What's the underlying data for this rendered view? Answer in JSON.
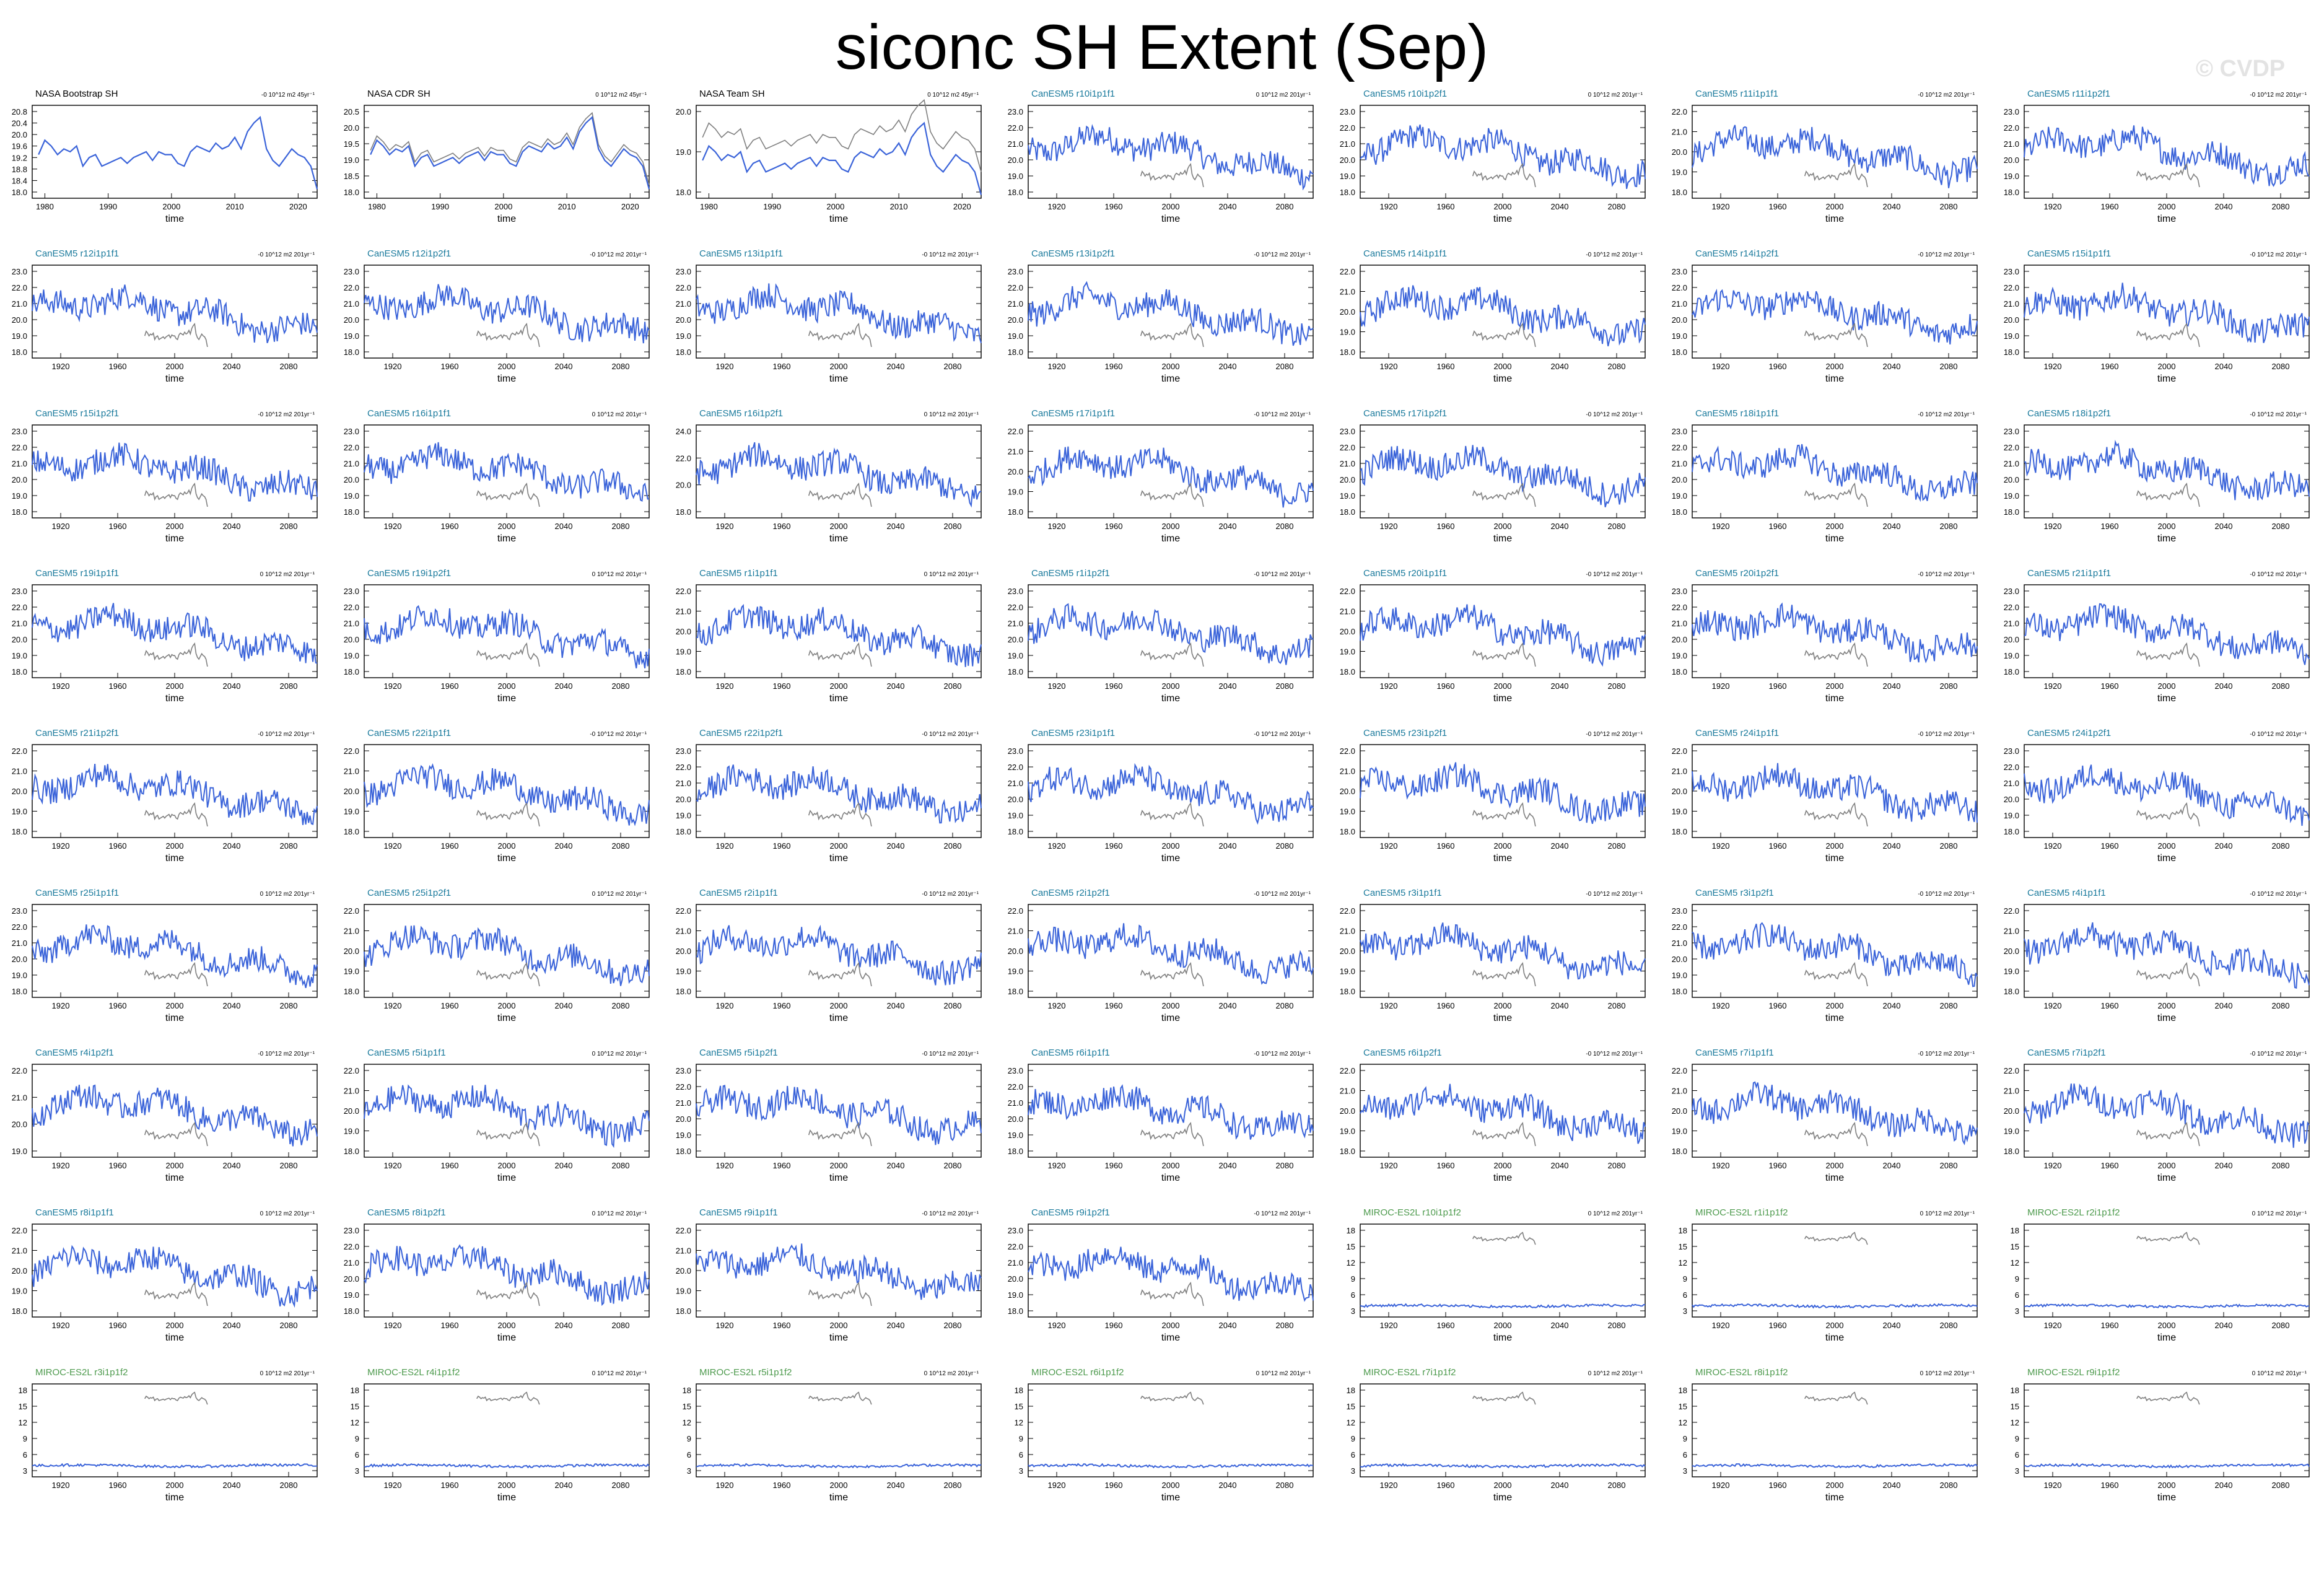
{
  "title": "siconc SH Extent (Sep)",
  "watermark": "© CVDP",
  "colors": {
    "model": "#3a63d9",
    "obs": "#7f7f7f",
    "label_obs": "#000000",
    "label_canesm": "#1a7a9c",
    "label_miroc": "#4d9a4d"
  },
  "panel_common": {
    "xlabel": "time",
    "obs_xticks": [
      "1980",
      "1990",
      "2000",
      "2010",
      "2020"
    ],
    "model_xticks": [
      "1920",
      "1960",
      "2000",
      "2040",
      "2080"
    ]
  },
  "panels": [
    {
      "name": "NASA Bootstrap SH",
      "stat": "-0 10^12 m2 45yr⁻¹",
      "kind": "obs",
      "yticks": [
        "18.0",
        "18.4",
        "18.8",
        "19.2",
        "19.6",
        "20.0",
        "20.4",
        "20.8"
      ]
    },
    {
      "name": "NASA CDR SH",
      "stat": "0 10^12 m2 45yr⁻¹",
      "kind": "obs",
      "yticks": [
        "18.0",
        "18.5",
        "19.0",
        "19.5",
        "20.0",
        "20.5"
      ]
    },
    {
      "name": "NASA Team SH",
      "stat": "0 10^12 m2 45yr⁻¹",
      "kind": "obs",
      "yticks": [
        "18.0",
        "19.0",
        "20.0"
      ]
    },
    {
      "name": "CanESM5 r10i1p1f1",
      "stat": "0 10^12 m2 201yr⁻¹",
      "kind": "canesm",
      "yticks": [
        "18.0",
        "19.0",
        "20.0",
        "21.0",
        "22.0",
        "23.0"
      ]
    },
    {
      "name": "CanESM5 r10i1p2f1",
      "stat": "0 10^12 m2 201yr⁻¹",
      "kind": "canesm",
      "yticks": [
        "18.0",
        "19.0",
        "20.0",
        "21.0",
        "22.0",
        "23.0"
      ]
    },
    {
      "name": "CanESM5 r11i1p1f1",
      "stat": "-0 10^12 m2 201yr⁻¹",
      "kind": "canesm",
      "yticks": [
        "18.0",
        "19.0",
        "20.0",
        "21.0",
        "22.0"
      ]
    },
    {
      "name": "CanESM5 r11i1p2f1",
      "stat": "-0 10^12 m2 201yr⁻¹",
      "kind": "canesm",
      "yticks": [
        "18.0",
        "19.0",
        "20.0",
        "21.0",
        "22.0",
        "23.0"
      ]
    },
    {
      "name": "CanESM5 r12i1p1f1",
      "stat": "-0 10^12 m2 201yr⁻¹",
      "kind": "canesm",
      "yticks": [
        "18.0",
        "19.0",
        "20.0",
        "21.0",
        "22.0",
        "23.0"
      ]
    },
    {
      "name": "CanESM5 r12i1p2f1",
      "stat": "-0 10^12 m2 201yr⁻¹",
      "kind": "canesm",
      "yticks": [
        "18.0",
        "19.0",
        "20.0",
        "21.0",
        "22.0",
        "23.0"
      ]
    },
    {
      "name": "CanESM5 r13i1p1f1",
      "stat": "-0 10^12 m2 201yr⁻¹",
      "kind": "canesm",
      "yticks": [
        "18.0",
        "19.0",
        "20.0",
        "21.0",
        "22.0",
        "23.0"
      ]
    },
    {
      "name": "CanESM5 r13i1p2f1",
      "stat": "-0 10^12 m2 201yr⁻¹",
      "kind": "canesm",
      "yticks": [
        "18.0",
        "19.0",
        "20.0",
        "21.0",
        "22.0",
        "23.0"
      ]
    },
    {
      "name": "CanESM5 r14i1p1f1",
      "stat": "-0 10^12 m2 201yr⁻¹",
      "kind": "canesm",
      "yticks": [
        "18.0",
        "19.0",
        "20.0",
        "21.0",
        "22.0"
      ]
    },
    {
      "name": "CanESM5 r14i1p2f1",
      "stat": "-0 10^12 m2 201yr⁻¹",
      "kind": "canesm",
      "yticks": [
        "18.0",
        "19.0",
        "20.0",
        "21.0",
        "22.0",
        "23.0"
      ]
    },
    {
      "name": "CanESM5 r15i1p1f1",
      "stat": "-0 10^12 m2 201yr⁻¹",
      "kind": "canesm",
      "yticks": [
        "18.0",
        "19.0",
        "20.0",
        "21.0",
        "22.0",
        "23.0"
      ]
    },
    {
      "name": "CanESM5 r15i1p2f1",
      "stat": "-0 10^12 m2 201yr⁻¹",
      "kind": "canesm",
      "yticks": [
        "18.0",
        "19.0",
        "20.0",
        "21.0",
        "22.0",
        "23.0"
      ]
    },
    {
      "name": "CanESM5 r16i1p1f1",
      "stat": "0 10^12 m2 201yr⁻¹",
      "kind": "canesm",
      "yticks": [
        "18.0",
        "19.0",
        "20.0",
        "21.0",
        "22.0",
        "23.0"
      ]
    },
    {
      "name": "CanESM5 r16i1p2f1",
      "stat": "0 10^12 m2 201yr⁻¹",
      "kind": "canesm",
      "yticks": [
        "18.0",
        "20.0",
        "22.0",
        "24.0"
      ]
    },
    {
      "name": "CanESM5 r17i1p1f1",
      "stat": "-0 10^12 m2 201yr⁻¹",
      "kind": "canesm",
      "yticks": [
        "18.0",
        "19.0",
        "20.0",
        "21.0",
        "22.0"
      ]
    },
    {
      "name": "CanESM5 r17i1p2f1",
      "stat": "-0 10^12 m2 201yr⁻¹",
      "kind": "canesm",
      "yticks": [
        "18.0",
        "19.0",
        "20.0",
        "21.0",
        "22.0",
        "23.0"
      ]
    },
    {
      "name": "CanESM5 r18i1p1f1",
      "stat": "-0 10^12 m2 201yr⁻¹",
      "kind": "canesm",
      "yticks": [
        "18.0",
        "19.0",
        "20.0",
        "21.0",
        "22.0",
        "23.0"
      ]
    },
    {
      "name": "CanESM5 r18i1p2f1",
      "stat": "-0 10^12 m2 201yr⁻¹",
      "kind": "canesm",
      "yticks": [
        "18.0",
        "19.0",
        "20.0",
        "21.0",
        "22.0",
        "23.0"
      ]
    },
    {
      "name": "CanESM5 r19i1p1f1",
      "stat": "0 10^12 m2 201yr⁻¹",
      "kind": "canesm",
      "yticks": [
        "18.0",
        "19.0",
        "20.0",
        "21.0",
        "22.0",
        "23.0"
      ]
    },
    {
      "name": "CanESM5 r19i1p2f1",
      "stat": "0 10^12 m2 201yr⁻¹",
      "kind": "canesm",
      "yticks": [
        "18.0",
        "19.0",
        "20.0",
        "21.0",
        "22.0",
        "23.0"
      ]
    },
    {
      "name": "CanESM5 r1i1p1f1",
      "stat": "0 10^12 m2 201yr⁻¹",
      "kind": "canesm",
      "yticks": [
        "18.0",
        "19.0",
        "20.0",
        "21.0",
        "22.0"
      ]
    },
    {
      "name": "CanESM5 r1i1p2f1",
      "stat": "-0 10^12 m2 201yr⁻¹",
      "kind": "canesm",
      "yticks": [
        "18.0",
        "19.0",
        "20.0",
        "21.0",
        "22.0",
        "23.0"
      ]
    },
    {
      "name": "CanESM5 r20i1p1f1",
      "stat": "-0 10^12 m2 201yr⁻¹",
      "kind": "canesm",
      "yticks": [
        "18.0",
        "19.0",
        "20.0",
        "21.0",
        "22.0"
      ]
    },
    {
      "name": "CanESM5 r20i1p2f1",
      "stat": "-0 10^12 m2 201yr⁻¹",
      "kind": "canesm",
      "yticks": [
        "18.0",
        "19.0",
        "20.0",
        "21.0",
        "22.0",
        "23.0"
      ]
    },
    {
      "name": "CanESM5 r21i1p1f1",
      "stat": "-0 10^12 m2 201yr⁻¹",
      "kind": "canesm",
      "yticks": [
        "18.0",
        "19.0",
        "20.0",
        "21.0",
        "22.0",
        "23.0"
      ]
    },
    {
      "name": "CanESM5 r21i1p2f1",
      "stat": "-0 10^12 m2 201yr⁻¹",
      "kind": "canesm",
      "yticks": [
        "18.0",
        "19.0",
        "20.0",
        "21.0",
        "22.0"
      ]
    },
    {
      "name": "CanESM5 r22i1p1f1",
      "stat": "-0 10^12 m2 201yr⁻¹",
      "kind": "canesm",
      "yticks": [
        "18.0",
        "19.0",
        "20.0",
        "21.0",
        "22.0"
      ]
    },
    {
      "name": "CanESM5 r22i1p2f1",
      "stat": "-0 10^12 m2 201yr⁻¹",
      "kind": "canesm",
      "yticks": [
        "18.0",
        "19.0",
        "20.0",
        "21.0",
        "22.0",
        "23.0"
      ]
    },
    {
      "name": "CanESM5 r23i1p1f1",
      "stat": "-0 10^12 m2 201yr⁻¹",
      "kind": "canesm",
      "yticks": [
        "18.0",
        "19.0",
        "20.0",
        "21.0",
        "22.0",
        "23.0"
      ]
    },
    {
      "name": "CanESM5 r23i1p2f1",
      "stat": "-0 10^12 m2 201yr⁻¹",
      "kind": "canesm",
      "yticks": [
        "18.0",
        "19.0",
        "20.0",
        "21.0",
        "22.0"
      ]
    },
    {
      "name": "CanESM5 r24i1p1f1",
      "stat": "-0 10^12 m2 201yr⁻¹",
      "kind": "canesm",
      "yticks": [
        "18.0",
        "19.0",
        "20.0",
        "21.0",
        "22.0"
      ]
    },
    {
      "name": "CanESM5 r24i1p2f1",
      "stat": "-0 10^12 m2 201yr⁻¹",
      "kind": "canesm",
      "yticks": [
        "18.0",
        "19.0",
        "20.0",
        "21.0",
        "22.0",
        "23.0"
      ]
    },
    {
      "name": "CanESM5 r25i1p1f1",
      "stat": "0 10^12 m2 201yr⁻¹",
      "kind": "canesm",
      "yticks": [
        "18.0",
        "19.0",
        "20.0",
        "21.0",
        "22.0",
        "23.0"
      ]
    },
    {
      "name": "CanESM5 r25i1p2f1",
      "stat": "0 10^12 m2 201yr⁻¹",
      "kind": "canesm",
      "yticks": [
        "18.0",
        "19.0",
        "20.0",
        "21.0",
        "22.0"
      ]
    },
    {
      "name": "CanESM5 r2i1p1f1",
      "stat": "-0 10^12 m2 201yr⁻¹",
      "kind": "canesm",
      "yticks": [
        "18.0",
        "19.0",
        "20.0",
        "21.0",
        "22.0"
      ]
    },
    {
      "name": "CanESM5 r2i1p2f1",
      "stat": "-0 10^12 m2 201yr⁻¹",
      "kind": "canesm",
      "yticks": [
        "18.0",
        "19.0",
        "20.0",
        "21.0",
        "22.0"
      ]
    },
    {
      "name": "CanESM5 r3i1p1f1",
      "stat": "-0 10^12 m2 201yr⁻¹",
      "kind": "canesm",
      "yticks": [
        "18.0",
        "19.0",
        "20.0",
        "21.0",
        "22.0"
      ]
    },
    {
      "name": "CanESM5 r3i1p2f1",
      "stat": "-0 10^12 m2 201yr⁻¹",
      "kind": "canesm",
      "yticks": [
        "18.0",
        "19.0",
        "20.0",
        "21.0",
        "22.0",
        "23.0"
      ]
    },
    {
      "name": "CanESM5 r4i1p1f1",
      "stat": "-0 10^12 m2 201yr⁻¹",
      "kind": "canesm",
      "yticks": [
        "18.0",
        "19.0",
        "20.0",
        "21.0",
        "22.0"
      ]
    },
    {
      "name": "CanESM5 r4i1p2f1",
      "stat": "-0 10^12 m2 201yr⁻¹",
      "kind": "canesm",
      "yticks": [
        "19.0",
        "20.0",
        "21.0",
        "22.0"
      ]
    },
    {
      "name": "CanESM5 r5i1p1f1",
      "stat": "0 10^12 m2 201yr⁻¹",
      "kind": "canesm",
      "yticks": [
        "18.0",
        "19.0",
        "20.0",
        "21.0",
        "22.0"
      ]
    },
    {
      "name": "CanESM5 r5i1p2f1",
      "stat": "-0 10^12 m2 201yr⁻¹",
      "kind": "canesm",
      "yticks": [
        "18.0",
        "19.0",
        "20.0",
        "21.0",
        "22.0",
        "23.0"
      ]
    },
    {
      "name": "CanESM5 r6i1p1f1",
      "stat": "-0 10^12 m2 201yr⁻¹",
      "kind": "canesm",
      "yticks": [
        "18.0",
        "19.0",
        "20.0",
        "21.0",
        "22.0",
        "23.0"
      ]
    },
    {
      "name": "CanESM5 r6i1p2f1",
      "stat": "-0 10^12 m2 201yr⁻¹",
      "kind": "canesm",
      "yticks": [
        "18.0",
        "19.0",
        "20.0",
        "21.0",
        "22.0"
      ]
    },
    {
      "name": "CanESM5 r7i1p1f1",
      "stat": "-0 10^12 m2 201yr⁻¹",
      "kind": "canesm",
      "yticks": [
        "18.0",
        "19.0",
        "20.0",
        "21.0",
        "22.0"
      ]
    },
    {
      "name": "CanESM5 r7i1p2f1",
      "stat": "-0 10^12 m2 201yr⁻¹",
      "kind": "canesm",
      "yticks": [
        "18.0",
        "19.0",
        "20.0",
        "21.0",
        "22.0"
      ]
    },
    {
      "name": "CanESM5 r8i1p1f1",
      "stat": "0 10^12 m2 201yr⁻¹",
      "kind": "canesm",
      "yticks": [
        "18.0",
        "19.0",
        "20.0",
        "21.0",
        "22.0"
      ]
    },
    {
      "name": "CanESM5 r8i1p2f1",
      "stat": "0 10^12 m2 201yr⁻¹",
      "kind": "canesm",
      "yticks": [
        "18.0",
        "19.0",
        "20.0",
        "21.0",
        "22.0",
        "23.0"
      ]
    },
    {
      "name": "CanESM5 r9i1p1f1",
      "stat": "-0 10^12 m2 201yr⁻¹",
      "kind": "canesm",
      "yticks": [
        "18.0",
        "19.0",
        "20.0",
        "21.0",
        "22.0"
      ]
    },
    {
      "name": "CanESM5 r9i1p2f1",
      "stat": "-0 10^12 m2 201yr⁻¹",
      "kind": "canesm",
      "yticks": [
        "18.0",
        "19.0",
        "20.0",
        "21.0",
        "22.0",
        "23.0"
      ]
    },
    {
      "name": "MIROC-ES2L r10i1p1f2",
      "stat": "0 10^12 m2 201yr⁻¹",
      "kind": "miroc",
      "yticks": [
        "3",
        "6",
        "9",
        "12",
        "15",
        "18"
      ]
    },
    {
      "name": "MIROC-ES2L r1i1p1f2",
      "stat": "0 10^12 m2 201yr⁻¹",
      "kind": "miroc",
      "yticks": [
        "3",
        "6",
        "9",
        "12",
        "15",
        "18"
      ]
    },
    {
      "name": "MIROC-ES2L r2i1p1f2",
      "stat": "0 10^12 m2 201yr⁻¹",
      "kind": "miroc",
      "yticks": [
        "3",
        "6",
        "9",
        "12",
        "15",
        "18"
      ]
    },
    {
      "name": "MIROC-ES2L r3i1p1f2",
      "stat": "0 10^12 m2 201yr⁻¹",
      "kind": "miroc",
      "yticks": [
        "3",
        "6",
        "9",
        "12",
        "15",
        "18"
      ]
    },
    {
      "name": "MIROC-ES2L r4i1p1f2",
      "stat": "0 10^12 m2 201yr⁻¹",
      "kind": "miroc",
      "yticks": [
        "3",
        "6",
        "9",
        "12",
        "15",
        "18"
      ]
    },
    {
      "name": "MIROC-ES2L r5i1p1f2",
      "stat": "0 10^12 m2 201yr⁻¹",
      "kind": "miroc",
      "yticks": [
        "3",
        "6",
        "9",
        "12",
        "15",
        "18"
      ]
    },
    {
      "name": "MIROC-ES2L r6i1p1f2",
      "stat": "0 10^12 m2 201yr⁻¹",
      "kind": "miroc",
      "yticks": [
        "3",
        "6",
        "9",
        "12",
        "15",
        "18"
      ]
    },
    {
      "name": "MIROC-ES2L r7i1p1f2",
      "stat": "0 10^12 m2 201yr⁻¹",
      "kind": "miroc",
      "yticks": [
        "3",
        "6",
        "9",
        "12",
        "15",
        "18"
      ]
    },
    {
      "name": "MIROC-ES2L r8i1p1f2",
      "stat": "0 10^12 m2 201yr⁻¹",
      "kind": "miroc",
      "yticks": [
        "3",
        "6",
        "9",
        "12",
        "15",
        "18"
      ]
    },
    {
      "name": "MIROC-ES2L r9i1p1f2",
      "stat": "0 10^12 m2 201yr⁻¹",
      "kind": "miroc",
      "yticks": [
        "3",
        "6",
        "9",
        "12",
        "15",
        "18"
      ]
    }
  ],
  "chart_data": {
    "type": "line",
    "title": "siconc SH Extent (Sep)",
    "xlabel": "time",
    "ylabel": "",
    "panel_count": 63,
    "obs_xlim": [
      1978,
      2023
    ],
    "model_xlim": [
      1900,
      2100
    ],
    "obs_series": {
      "name": "NASA Bootstrap SH",
      "x": [
        1979,
        1980,
        1981,
        1982,
        1983,
        1984,
        1985,
        1986,
        1987,
        1988,
        1989,
        1990,
        1991,
        1992,
        1993,
        1994,
        1995,
        1996,
        1997,
        1998,
        1999,
        2000,
        2001,
        2002,
        2003,
        2004,
        2005,
        2006,
        2007,
        2008,
        2009,
        2010,
        2011,
        2012,
        2013,
        2014,
        2015,
        2016,
        2017,
        2018,
        2019,
        2020,
        2021,
        2022,
        2023
      ],
      "values": [
        19.3,
        19.8,
        19.6,
        19.3,
        19.5,
        19.4,
        19.6,
        18.9,
        19.2,
        19.3,
        18.9,
        19.0,
        19.1,
        19.2,
        19.0,
        19.2,
        19.3,
        19.4,
        19.1,
        19.4,
        19.3,
        19.3,
        19.0,
        18.9,
        19.4,
        19.6,
        19.5,
        19.4,
        19.7,
        19.5,
        19.6,
        19.9,
        19.5,
        20.1,
        20.4,
        20.6,
        19.5,
        19.1,
        18.9,
        19.2,
        19.5,
        19.3,
        19.2,
        18.9,
        18.1
      ]
    },
    "model_series_shape": {
      "x_range": [
        1900,
        2100
      ],
      "typical_range_canesm": [
        18.5,
        23.0
      ],
      "typical_range_miroc": [
        3.5,
        4.5
      ]
    }
  }
}
